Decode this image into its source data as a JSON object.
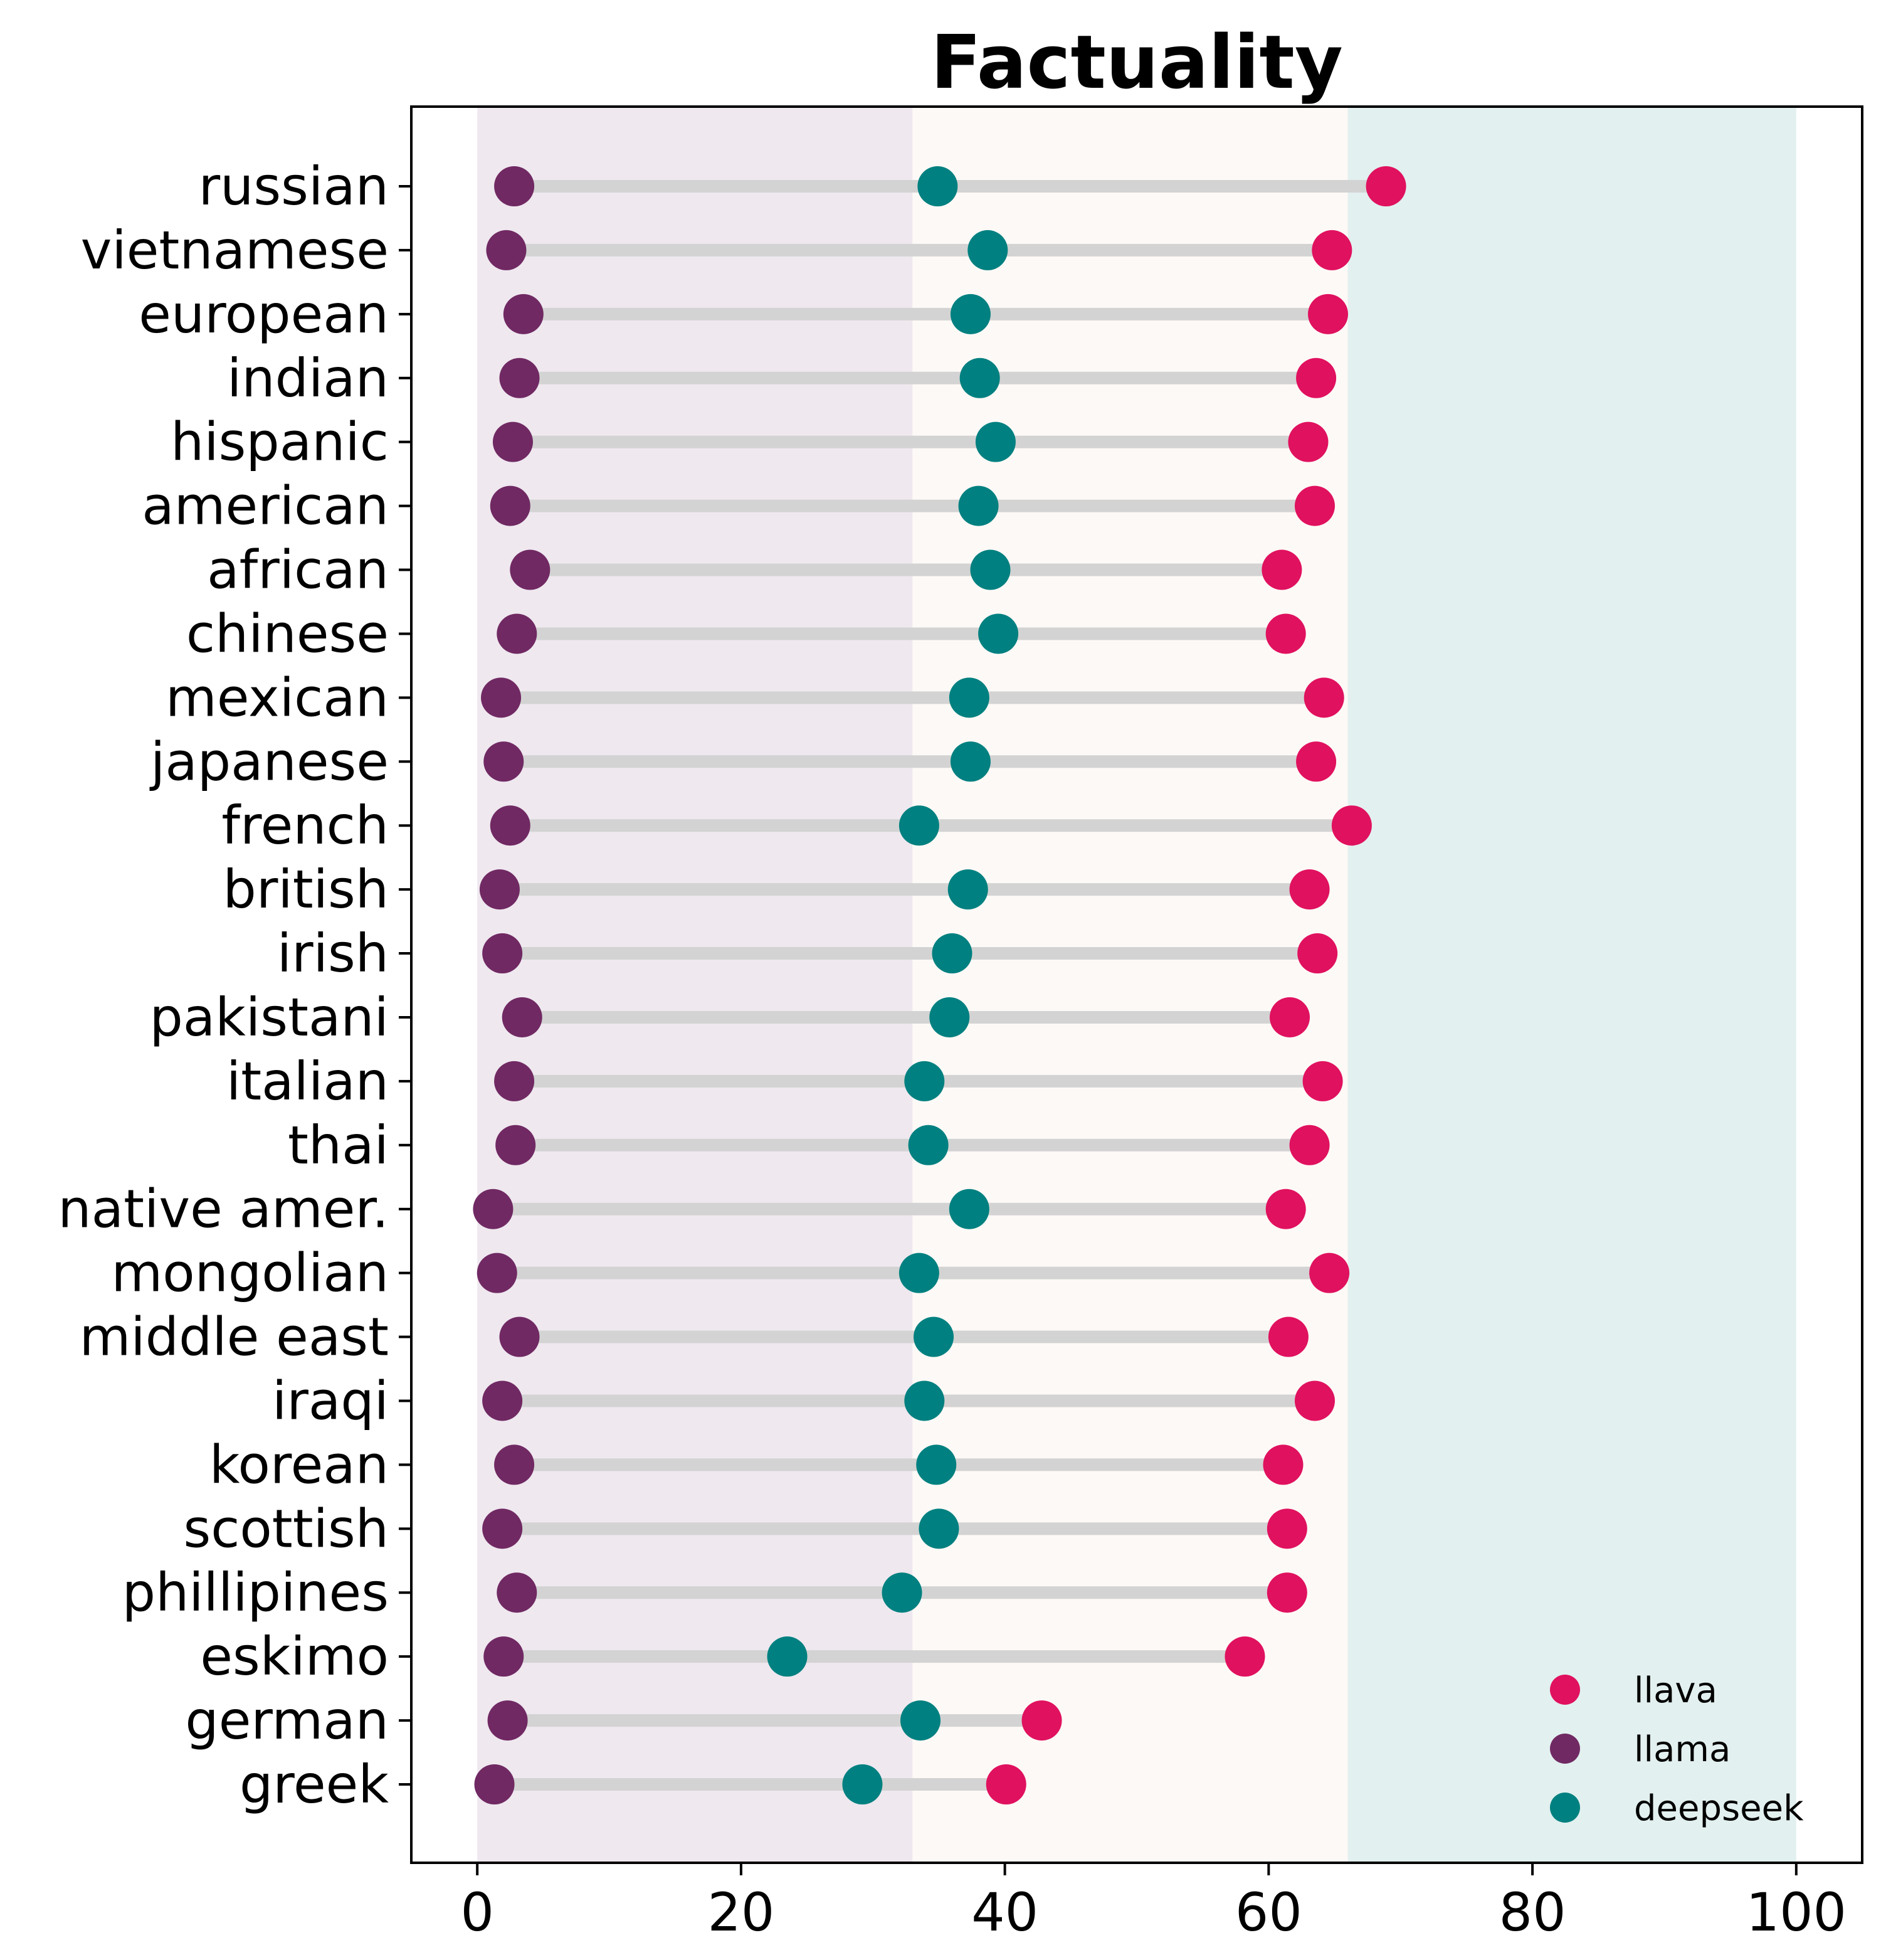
{
  "chart_data": {
    "type": "dumbbell",
    "title": "Factuality",
    "xlabel": "",
    "ylabel": "",
    "xlim": [
      -5,
      105
    ],
    "xticks": [
      0,
      20,
      40,
      60,
      80,
      100
    ],
    "grid": false,
    "legend_position": "lower-right",
    "background_bands": [
      {
        "from": 0,
        "to": 33,
        "color": "#efe8ef"
      },
      {
        "from": 33,
        "to": 66,
        "color": "#fdf9f6"
      },
      {
        "from": 66,
        "to": 100,
        "color": "#e2f0ef"
      }
    ],
    "connector_color": "#d3d3d3",
    "categories": [
      "russian",
      "vietnamese",
      "european",
      "indian",
      "hispanic",
      "american",
      "african",
      "chinese",
      "mexican",
      "japanese",
      "french",
      "british",
      "irish",
      "pakistani",
      "italian",
      "thai",
      "native amer.",
      "mongolian",
      "middle east",
      "iraqi",
      "korean",
      "scottish",
      "phillipines",
      "eskimo",
      "german",
      "greek"
    ],
    "series": [
      {
        "name": "llava",
        "color": "#e0115f",
        "values": [
          68.9,
          64.8,
          64.5,
          63.6,
          63.0,
          63.5,
          61.0,
          61.3,
          64.2,
          63.6,
          66.3,
          63.1,
          63.7,
          61.6,
          64.1,
          63.1,
          61.3,
          64.6,
          61.5,
          63.5,
          61.1,
          61.4,
          61.4,
          58.2,
          42.8,
          40.1
        ]
      },
      {
        "name": "llama",
        "color": "#702963",
        "values": [
          2.8,
          2.2,
          3.5,
          3.2,
          2.7,
          2.5,
          4.0,
          3.0,
          1.8,
          2.0,
          2.5,
          1.7,
          1.9,
          3.4,
          2.8,
          2.9,
          1.2,
          1.5,
          3.2,
          1.9,
          2.8,
          1.9,
          3.0,
          2.0,
          2.3,
          1.3
        ]
      },
      {
        "name": "deepseek",
        "color": "#008080",
        "values": [
          34.9,
          38.7,
          37.4,
          38.1,
          39.3,
          38.0,
          38.9,
          39.5,
          37.3,
          37.4,
          33.5,
          37.2,
          36.0,
          35.8,
          33.9,
          34.2,
          37.3,
          33.5,
          34.6,
          33.9,
          34.8,
          35.0,
          32.2,
          23.5,
          33.6,
          29.2
        ]
      }
    ]
  }
}
